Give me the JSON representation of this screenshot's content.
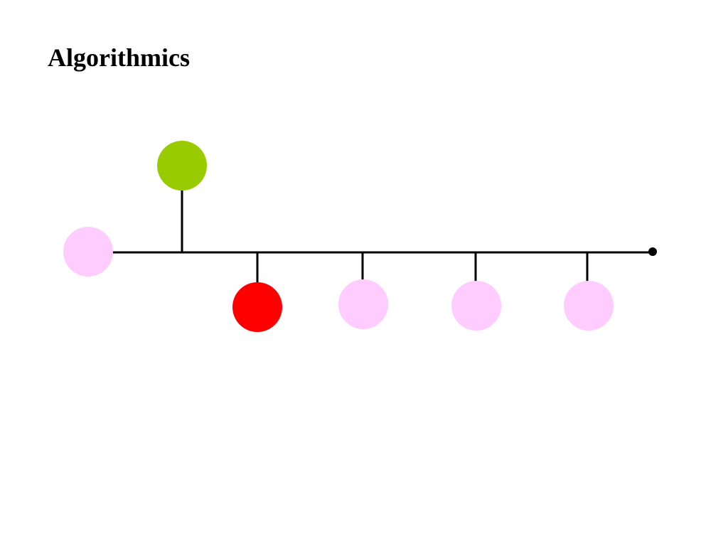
{
  "header": {
    "title": "Algorithmics"
  }
}
